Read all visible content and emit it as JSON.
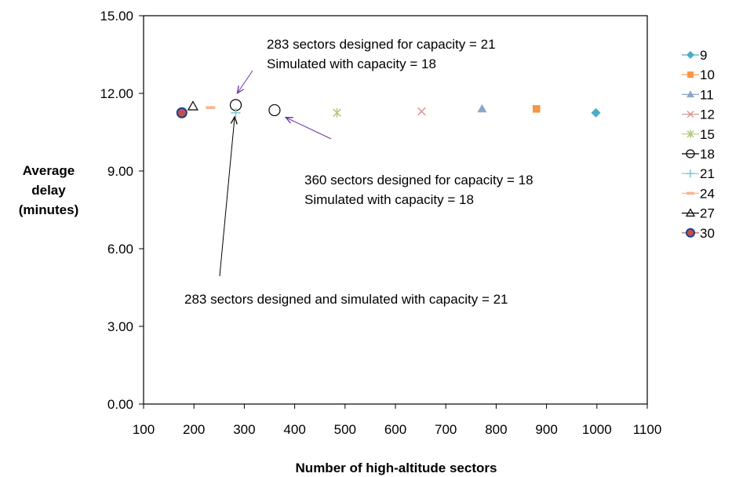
{
  "chart_data": {
    "type": "scatter",
    "title": "",
    "xlabel": "Number of high-altitude sectors",
    "ylabel": [
      "Average",
      "delay",
      "(minutes)"
    ],
    "xlim": [
      100,
      1100
    ],
    "ylim": [
      0,
      15
    ],
    "x_ticks": [
      "100",
      "200",
      "300",
      "400",
      "500",
      "600",
      "700",
      "800",
      "900",
      "1000",
      "1100"
    ],
    "y_ticks": [
      "0.00",
      "3.00",
      "6.00",
      "9.00",
      "12.00",
      "15.00"
    ],
    "grid": false,
    "legend_position": "right",
    "series": [
      {
        "name": "9",
        "marker": "diamond",
        "color": "#4bacc6",
        "x": [
          998
        ],
        "y": [
          11.25
        ]
      },
      {
        "name": "10",
        "marker": "square",
        "color": "#f79646",
        "x": [
          880
        ],
        "y": [
          11.4
        ]
      },
      {
        "name": "11",
        "marker": "triangle",
        "color": "#8fa4c8",
        "x": [
          772
        ],
        "y": [
          11.4
        ]
      },
      {
        "name": "12",
        "marker": "x",
        "color": "#d99694",
        "x": [
          652
        ],
        "y": [
          11.3
        ]
      },
      {
        "name": "15",
        "marker": "star",
        "color": "#b3c97c",
        "x": [
          484
        ],
        "y": [
          11.25
        ]
      },
      {
        "name": "18",
        "marker": "circle-open",
        "color": "#000000",
        "x": [
          283,
          360
        ],
        "y": [
          11.55,
          11.35
        ]
      },
      {
        "name": "21",
        "marker": "plus",
        "color": "#7ec4d9",
        "x": [
          283
        ],
        "y": [
          11.25
        ]
      },
      {
        "name": "24",
        "marker": "dash",
        "color": "#f7b592",
        "x": [
          233
        ],
        "y": [
          11.45
        ]
      },
      {
        "name": "27",
        "marker": "triangle-open",
        "color": "#000000",
        "x": [
          198
        ],
        "y": [
          11.5
        ]
      },
      {
        "name": "30",
        "marker": "circle-filled",
        "color": "#c0504d",
        "x": [
          176
        ],
        "y": [
          11.25
        ]
      }
    ],
    "annotations": [
      {
        "lines": [
          "283 sectors designed for capacity = 21",
          "Simulated with capacity = 18"
        ],
        "color": "#7030a0"
      },
      {
        "lines": [
          "360 sectors designed for capacity = 18",
          "Simulated with capacity = 18"
        ],
        "color": "#7030a0"
      },
      {
        "lines": [
          "283 sectors designed and simulated with capacity = 21"
        ],
        "color": "#000000"
      }
    ]
  }
}
